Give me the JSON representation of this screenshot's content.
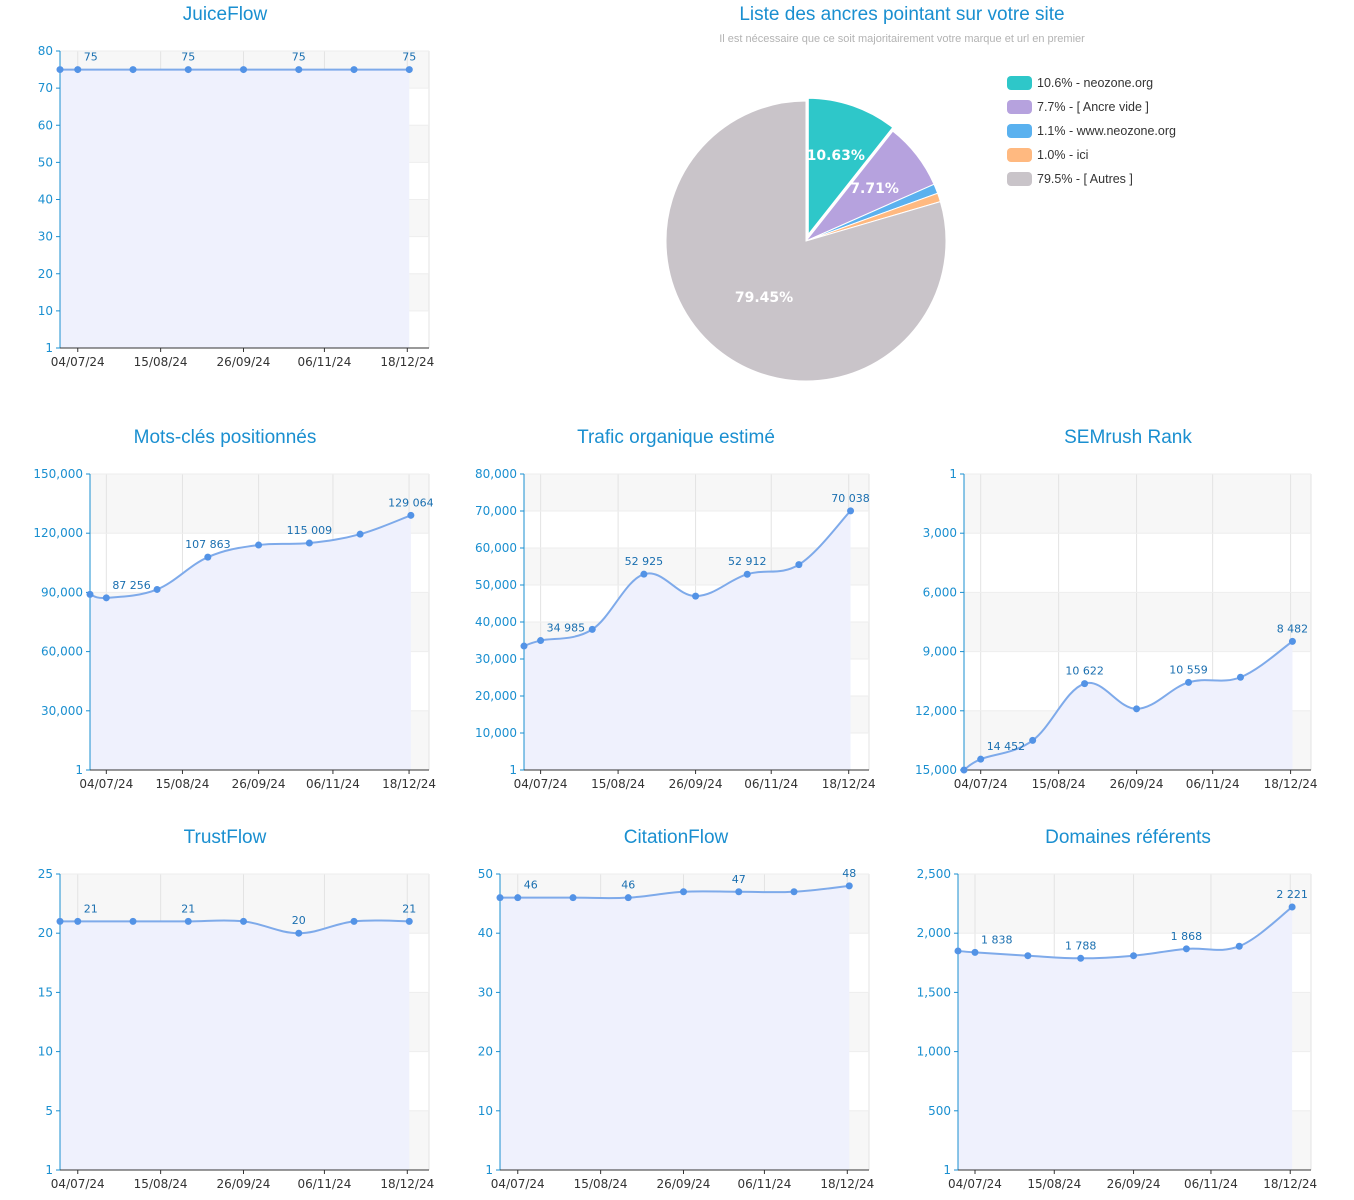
{
  "chart_data": [
    {
      "id": "juiceflow",
      "type": "line",
      "title": "JuiceFlow",
      "x": [
        "2024-06-25",
        "2024-07-04",
        "2024-08-01",
        "2024-08-29",
        "2024-09-26",
        "2024-10-24",
        "2024-11-21",
        "2024-12-19"
      ],
      "values": [
        75,
        75,
        75,
        75,
        75,
        75,
        75,
        75
      ],
      "labels": [
        "",
        "75",
        "",
        "75",
        "",
        "75",
        "",
        "75"
      ],
      "xticks": [
        "04/07/24",
        "15/08/24",
        "26/09/24",
        "06/11/24",
        "18/12/24"
      ],
      "yticks": [
        "1",
        "10",
        "20",
        "30",
        "40",
        "50",
        "60",
        "70",
        "80"
      ],
      "ylim": [
        0,
        80
      ],
      "ystep": 10,
      "reversed": false
    },
    {
      "id": "motscles",
      "type": "area",
      "title": "Mots-clés positionnés",
      "x": [
        "2024-06-25",
        "2024-07-04",
        "2024-08-01",
        "2024-08-29",
        "2024-09-26",
        "2024-10-24",
        "2024-11-21",
        "2024-12-19"
      ],
      "values": [
        89000,
        87256,
        91500,
        107863,
        114000,
        115009,
        119500,
        129064
      ],
      "labels": [
        "",
        "87 256",
        "",
        "107 863",
        "",
        "115 009",
        "",
        "129 064"
      ],
      "xticks": [
        "04/07/24",
        "15/08/24",
        "26/09/24",
        "06/11/24",
        "18/12/24"
      ],
      "yticks": [
        "1",
        "30,000",
        "60,000",
        "90,000",
        "120,000",
        "150,000"
      ],
      "ylim": [
        0,
        150000
      ],
      "ystep": 30000,
      "reversed": false
    },
    {
      "id": "trafic",
      "type": "area",
      "title": "Trafic organique estimé",
      "x": [
        "2024-06-25",
        "2024-07-04",
        "2024-08-01",
        "2024-08-29",
        "2024-09-26",
        "2024-10-24",
        "2024-11-21",
        "2024-12-19"
      ],
      "values": [
        33500,
        34985,
        38000,
        52925,
        47000,
        52912,
        55500,
        70038
      ],
      "labels": [
        "",
        "34 985",
        "",
        "52 925",
        "",
        "52 912",
        "",
        "70 038"
      ],
      "xticks": [
        "04/07/24",
        "15/08/24",
        "26/09/24",
        "06/11/24",
        "18/12/24"
      ],
      "yticks": [
        "1",
        "10,000",
        "20,000",
        "30,000",
        "40,000",
        "50,000",
        "60,000",
        "70,000",
        "80,000"
      ],
      "ylim": [
        0,
        80000
      ],
      "ystep": 10000,
      "reversed": false
    },
    {
      "id": "semrush",
      "type": "area",
      "title": "SEMrush Rank",
      "x": [
        "2024-06-25",
        "2024-07-04",
        "2024-08-01",
        "2024-08-29",
        "2024-09-26",
        "2024-10-24",
        "2024-11-21",
        "2024-12-19"
      ],
      "values": [
        15000,
        14452,
        13500,
        10622,
        11900,
        10559,
        10300,
        8482
      ],
      "labels": [
        "",
        "14 452",
        "",
        "10 622",
        "",
        "10 559",
        "",
        "8 482"
      ],
      "xticks": [
        "04/07/24",
        "15/08/24",
        "26/09/24",
        "06/11/24",
        "18/12/24"
      ],
      "yticks": [
        "1",
        "3,000",
        "6,000",
        "9,000",
        "12,000",
        "15,000"
      ],
      "ylim": [
        0,
        15000
      ],
      "ystep": 3000,
      "reversed": true
    },
    {
      "id": "trustflow",
      "type": "area",
      "title": "TrustFlow",
      "x": [
        "2024-06-25",
        "2024-07-04",
        "2024-08-01",
        "2024-08-29",
        "2024-09-26",
        "2024-10-24",
        "2024-11-21",
        "2024-12-19"
      ],
      "values": [
        21,
        21,
        21,
        21,
        21,
        20,
        21,
        21
      ],
      "labels": [
        "",
        "21",
        "",
        "21",
        "",
        "20",
        "",
        "21"
      ],
      "xticks": [
        "04/07/24",
        "15/08/24",
        "26/09/24",
        "06/11/24",
        "18/12/24"
      ],
      "yticks": [
        "1",
        "5",
        "10",
        "15",
        "20",
        "25"
      ],
      "ylim": [
        0,
        25
      ],
      "ystep": 5,
      "reversed": false
    },
    {
      "id": "citationflow",
      "type": "area",
      "title": "CitationFlow",
      "x": [
        "2024-06-25",
        "2024-07-04",
        "2024-08-01",
        "2024-08-29",
        "2024-09-26",
        "2024-10-24",
        "2024-11-21",
        "2024-12-19"
      ],
      "values": [
        46,
        46,
        46,
        46,
        47,
        47,
        47,
        48
      ],
      "labels": [
        "",
        "46",
        "",
        "46",
        "",
        "47",
        "",
        "48"
      ],
      "xticks": [
        "04/07/24",
        "15/08/24",
        "26/09/24",
        "06/11/24",
        "18/12/24"
      ],
      "yticks": [
        "1",
        "10",
        "20",
        "30",
        "40",
        "50"
      ],
      "ylim": [
        0,
        50
      ],
      "ystep": 10,
      "reversed": false
    },
    {
      "id": "domaines",
      "type": "area",
      "title": "Domaines référents",
      "x": [
        "2024-06-25",
        "2024-07-04",
        "2024-08-01",
        "2024-08-29",
        "2024-09-26",
        "2024-10-24",
        "2024-11-21",
        "2024-12-19"
      ],
      "values": [
        1850,
        1838,
        1810,
        1788,
        1810,
        1868,
        1890,
        2221
      ],
      "labels": [
        "",
        "1 838",
        "",
        "1 788",
        "",
        "1 868",
        "",
        "2 221"
      ],
      "xticks": [
        "04/07/24",
        "15/08/24",
        "26/09/24",
        "06/11/24",
        "18/12/24"
      ],
      "yticks": [
        "1",
        "500",
        "1,000",
        "1,500",
        "2,000",
        "2,500"
      ],
      "ylim": [
        0,
        2500
      ],
      "ystep": 500,
      "reversed": false
    },
    {
      "id": "ancres",
      "type": "pie",
      "title": "Liste des ancres pointant sur votre site",
      "subtitle": "Il est nécessaire que ce soit majoritairement votre marque et url en premier",
      "slices": [
        {
          "name": "neozone.org",
          "value": 10.63,
          "legend": "10.6% - neozone.org",
          "label": "10.63%",
          "color": "#2ec7c9"
        },
        {
          "name": "[ Ancre vide ]",
          "value": 7.71,
          "legend": "7.7% - [ Ancre vide ]",
          "label": "7.71%",
          "color": "#b6a2de"
        },
        {
          "name": "www.neozone.org",
          "value": 1.1,
          "legend": "1.1% - www.neozone.org",
          "label": "",
          "color": "#5ab1ef"
        },
        {
          "name": "ici",
          "value": 1.0,
          "legend": "1.0% - ici",
          "label": "",
          "color": "#ffb980"
        },
        {
          "name": "[ Autres ]",
          "value": 79.45,
          "legend": "79.5% - [ Autres ]",
          "label": "79.45%",
          "color": "#c9c4c9"
        }
      ]
    }
  ],
  "colors": {
    "title": "#1a8fd0",
    "axis": "#1a8fd0",
    "line": "#7eaaea",
    "point": "#5393e6",
    "area": "#eff1fd",
    "grid": "#e3e3e3",
    "band": "#f7f7f7",
    "label": "#1a6fb0"
  }
}
